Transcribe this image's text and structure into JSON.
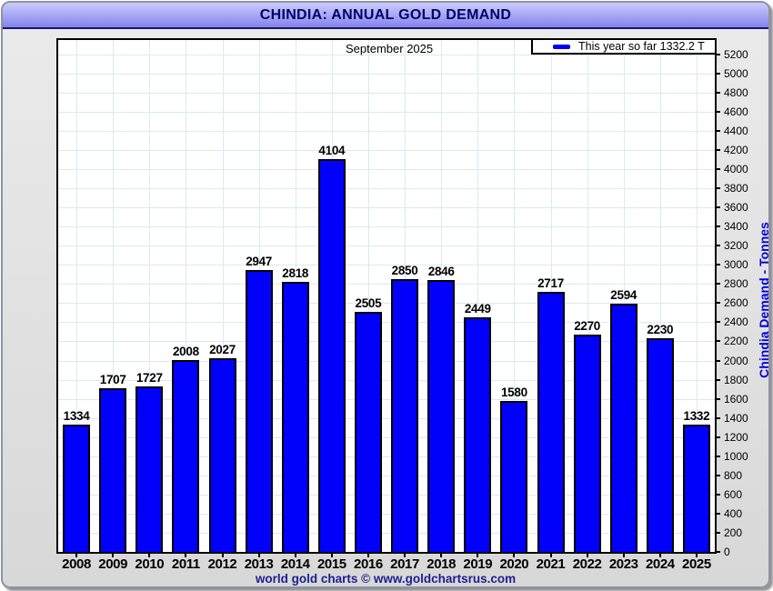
{
  "title_bar": {
    "title": "CHINDIA: ANNUAL GOLD DEMAND"
  },
  "footer": {
    "credit": "world gold charts © www.goldchartsrus.com"
  },
  "colors": {
    "bar_fill": "#0101fb",
    "bar_border": "#000000",
    "grid_line": "#dce8f4",
    "title_text": "#00006b",
    "footer_text": "#1d1d92",
    "y_axis_title_text": "#0000dd",
    "titlebar_gradient_top": "#cccbfb",
    "titlebar_gradient_bottom": "#8583ec",
    "plot_background": "#ffffff",
    "window_background": "#e2e2e2"
  },
  "chart_data": {
    "type": "bar",
    "title": "CHINDIA: ANNUAL GOLD DEMAND",
    "annotation": "September 2025",
    "legend": [
      {
        "label": "This year so far 1332.2 T",
        "color": "#0101fb"
      }
    ],
    "legend_position": "top-right",
    "categories": [
      "2008",
      "2009",
      "2010",
      "2011",
      "2012",
      "2013",
      "2014",
      "2015",
      "2016",
      "2017",
      "2018",
      "2019",
      "2020",
      "2021",
      "2022",
      "2023",
      "2024",
      "2025"
    ],
    "values": [
      1334,
      1707,
      1727,
      2008,
      2027,
      2947,
      2818,
      4104,
      2505,
      2850,
      2846,
      2449,
      1580,
      2717,
      2270,
      2594,
      2230,
      1332
    ],
    "xlabel": "",
    "ylabel": "Chindia Demand - Tonnes",
    "ylim": [
      0,
      5350
    ],
    "ytick_step": 200,
    "ytick_max": 5200,
    "grid": true,
    "value_labels_shown": true
  }
}
